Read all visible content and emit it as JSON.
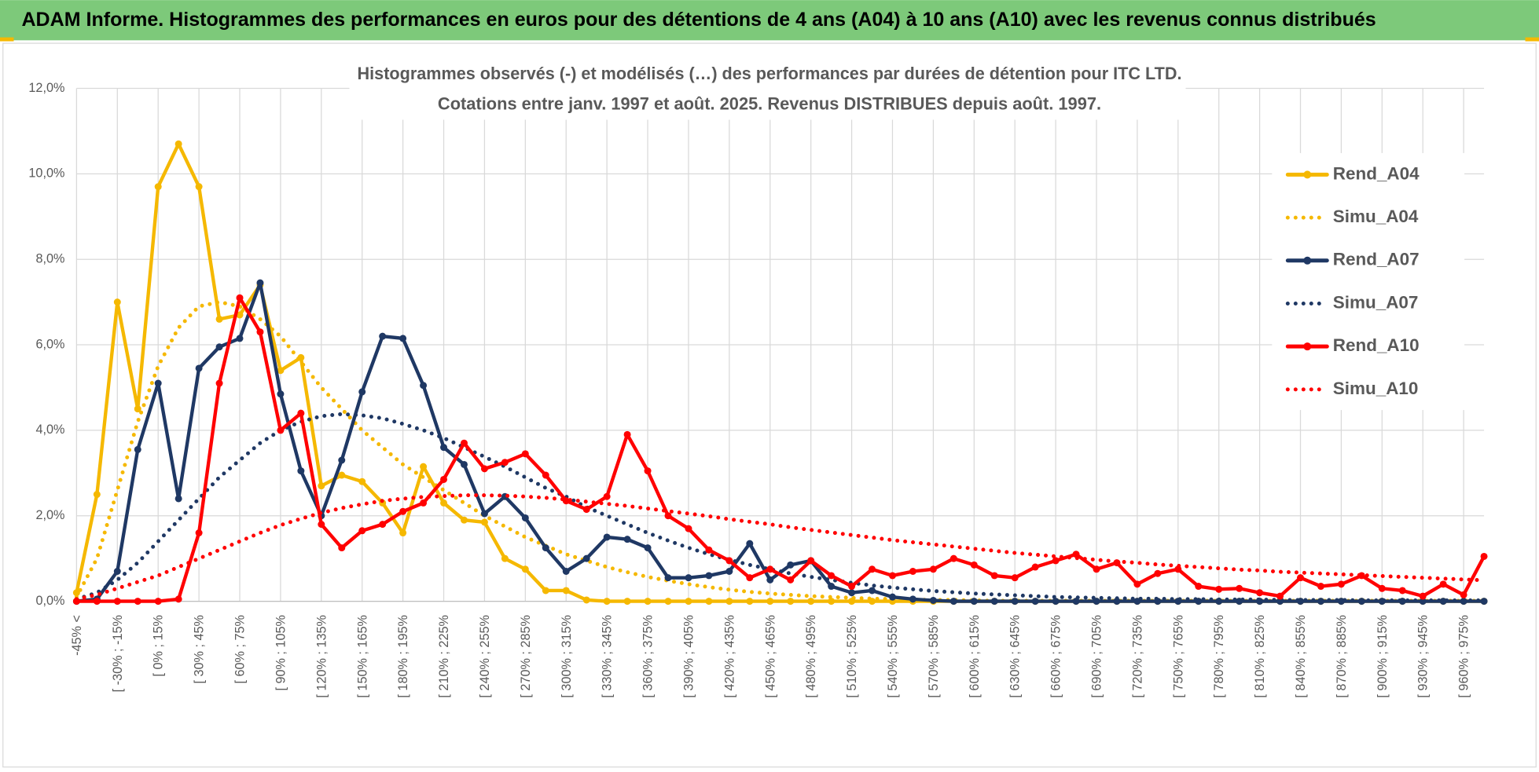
{
  "header": {
    "title": "ADAM Informe. Histogrammes des performances en euros pour des détentions de 4 ans (A04) à 10 ans (A10) avec les revenus connus distribués"
  },
  "chart_data": {
    "type": "line",
    "subtitle": [
      "Histogrammes observés (-) et modélisés (…) des performances par durées de détention pour ITC LTD.",
      "Cotations entre janv. 1997 et août. 2025. Revenus DISTRIBUES depuis août. 1997."
    ],
    "categories": [
      "-45% <",
      null,
      "[ -30% ; -15%",
      null,
      "[ 0% ; 15%",
      null,
      "[ 30% ; 45%",
      null,
      "[ 60% ; 75%",
      null,
      "[ 90% ; 105%",
      null,
      "[ 120% ; 135%",
      null,
      "[ 150% ; 165%",
      null,
      "[ 180% ; 195%",
      null,
      "[ 210% ; 225%",
      null,
      "[ 240% ; 255%",
      null,
      "[ 270% ; 285%",
      null,
      "[ 300% ; 315%",
      null,
      "[ 330% ; 345%",
      null,
      "[ 360% ; 375%",
      null,
      "[ 390% ; 405%",
      null,
      "[ 420% ; 435%",
      null,
      "[ 450% ; 465%",
      null,
      "[ 480% ; 495%",
      null,
      "[ 510% ; 525%",
      null,
      "[ 540% ; 555%",
      null,
      "[ 570% ; 585%",
      null,
      "[ 600% ; 615%",
      null,
      "[ 630% ; 645%",
      null,
      "[ 660% ; 675%",
      null,
      "[ 690% ; 705%",
      null,
      "[ 720% ; 735%",
      null,
      "[ 750% ; 765%",
      null,
      "[ 780% ; 795%",
      null,
      "[ 810% ; 825%",
      null,
      "[ 840% ; 855%",
      null,
      "[ 870% ; 885%",
      null,
      "[ 900% ; 915%",
      null,
      "[ 930% ; 945%",
      null,
      "[ 960% ; 975%",
      null
    ],
    "series": [
      {
        "name": "Rend_A04",
        "color": "#f5b800",
        "style": "solid",
        "values": [
          0.2,
          2.5,
          7.0,
          4.5,
          9.7,
          10.7,
          9.7,
          6.6,
          6.7,
          7.4,
          5.4,
          5.7,
          2.7,
          2.95,
          2.8,
          2.3,
          1.6,
          3.15,
          2.3,
          1.9,
          1.85,
          1.0,
          0.75,
          0.25,
          0.25,
          0.03,
          0,
          0,
          0,
          0,
          0,
          0,
          0,
          0,
          0,
          0,
          0,
          0,
          0,
          0,
          0,
          0,
          0,
          0,
          0,
          0,
          0,
          0,
          0,
          0,
          0,
          0,
          0,
          0,
          0,
          0,
          0,
          0,
          0,
          0,
          0,
          0,
          0,
          0,
          0,
          0,
          0,
          0,
          0,
          0
        ]
      },
      {
        "name": "Simu_A04",
        "color": "#f5b800",
        "style": "dotted",
        "values": [
          0.1,
          1.0,
          2.6,
          4.2,
          5.5,
          6.4,
          6.9,
          7.0,
          6.9,
          6.6,
          6.2,
          5.6,
          5.0,
          4.5,
          4.0,
          3.6,
          3.2,
          2.9,
          2.6,
          2.3,
          2.0,
          1.75,
          1.5,
          1.3,
          1.1,
          0.95,
          0.8,
          0.68,
          0.57,
          0.48,
          0.4,
          0.33,
          0.27,
          0.22,
          0.18,
          0.15,
          0.12,
          0.1,
          0.08,
          0.06,
          0.05,
          0.04,
          0.03,
          0.03,
          0.02,
          0.01,
          0.01,
          0.01,
          0.01,
          0.01,
          0.01,
          0.01,
          0.01,
          0.01,
          0.01,
          0.01,
          0.01,
          0.01,
          0.01,
          0.01,
          0.01,
          0.01,
          0.01,
          0.01,
          0.01,
          0.01,
          0.01,
          0.01,
          0.01,
          0.01
        ]
      },
      {
        "name": "Rend_A07",
        "color": "#1f3864",
        "style": "solid",
        "values": [
          0,
          0.05,
          0.7,
          3.55,
          5.1,
          2.4,
          5.45,
          5.95,
          6.15,
          7.45,
          4.85,
          3.05,
          2.0,
          3.3,
          4.9,
          6.2,
          6.15,
          5.05,
          3.6,
          3.2,
          2.05,
          2.45,
          1.95,
          1.25,
          0.7,
          1.0,
          1.5,
          1.45,
          1.25,
          0.55,
          0.55,
          0.6,
          0.7,
          1.35,
          0.5,
          0.85,
          0.95,
          0.35,
          0.2,
          0.25,
          0.1,
          0.05,
          0.02,
          0,
          0,
          0,
          0,
          0,
          0,
          0,
          0,
          0,
          0,
          0,
          0,
          0,
          0,
          0,
          0,
          0,
          0,
          0,
          0,
          0,
          0,
          0,
          0,
          0,
          0,
          0
        ]
      },
      {
        "name": "Simu_A07",
        "color": "#1f3864",
        "style": "dotted",
        "values": [
          0.05,
          0.2,
          0.5,
          0.9,
          1.4,
          1.9,
          2.4,
          2.9,
          3.3,
          3.7,
          4.0,
          4.2,
          4.33,
          4.38,
          4.35,
          4.28,
          4.15,
          4.0,
          3.82,
          3.6,
          3.38,
          3.15,
          2.9,
          2.65,
          2.45,
          2.2,
          2.0,
          1.8,
          1.6,
          1.42,
          1.25,
          1.1,
          0.97,
          0.85,
          0.75,
          0.65,
          0.57,
          0.5,
          0.43,
          0.37,
          0.32,
          0.28,
          0.24,
          0.21,
          0.18,
          0.16,
          0.14,
          0.12,
          0.1,
          0.09,
          0.08,
          0.07,
          0.06,
          0.06,
          0.05,
          0.05,
          0.04,
          0.04,
          0.04,
          0.03,
          0.03,
          0.03,
          0.03,
          0.02,
          0.02,
          0.02,
          0.02,
          0.02,
          0.02,
          0.02
        ]
      },
      {
        "name": "Rend_A10",
        "color": "#ff0000",
        "style": "solid",
        "values": [
          0,
          0,
          0,
          0,
          0,
          0.05,
          1.6,
          5.1,
          7.1,
          6.3,
          4.0,
          4.4,
          1.8,
          1.25,
          1.65,
          1.8,
          2.1,
          2.3,
          2.85,
          3.7,
          3.1,
          3.25,
          3.45,
          2.95,
          2.35,
          2.15,
          2.45,
          3.9,
          3.05,
          2.0,
          1.7,
          1.2,
          0.95,
          0.55,
          0.75,
          0.5,
          0.95,
          0.6,
          0.35,
          0.75,
          0.6,
          0.7,
          0.75,
          1.0,
          0.85,
          0.6,
          0.55,
          0.8,
          0.95,
          1.1,
          0.75,
          0.9,
          0.4,
          0.65,
          0.75,
          0.35,
          0.28,
          0.3,
          0.2,
          0.12,
          0.55,
          0.35,
          0.4,
          0.6,
          0.3,
          0.25,
          0.12,
          0.4,
          0.15,
          1.05
        ]
      },
      {
        "name": "Simu_A10",
        "color": "#ff0000",
        "style": "dotted",
        "values": [
          0.05,
          0.15,
          0.3,
          0.45,
          0.6,
          0.8,
          1.0,
          1.2,
          1.4,
          1.6,
          1.78,
          1.93,
          2.07,
          2.18,
          2.27,
          2.35,
          2.4,
          2.44,
          2.46,
          2.48,
          2.48,
          2.47,
          2.45,
          2.42,
          2.38,
          2.33,
          2.28,
          2.23,
          2.17,
          2.11,
          2.05,
          1.99,
          1.92,
          1.86,
          1.8,
          1.73,
          1.67,
          1.61,
          1.55,
          1.49,
          1.43,
          1.38,
          1.33,
          1.28,
          1.23,
          1.18,
          1.13,
          1.09,
          1.05,
          1.01,
          0.97,
          0.93,
          0.9,
          0.86,
          0.83,
          0.8,
          0.77,
          0.74,
          0.72,
          0.69,
          0.67,
          0.65,
          0.63,
          0.61,
          0.59,
          0.57,
          0.55,
          0.53,
          0.51,
          0.49
        ]
      }
    ],
    "ylim": [
      0,
      12
    ],
    "yticks": [
      {
        "value": 0,
        "label": "0,0%"
      },
      {
        "value": 2,
        "label": "2,0%"
      },
      {
        "value": 4,
        "label": "4,0%"
      },
      {
        "value": 6,
        "label": "6,0%"
      },
      {
        "value": 8,
        "label": "8,0%"
      },
      {
        "value": 10,
        "label": "10,0%"
      },
      {
        "value": 12,
        "label": "12,0%"
      }
    ],
    "grid": true,
    "legend": "right"
  }
}
